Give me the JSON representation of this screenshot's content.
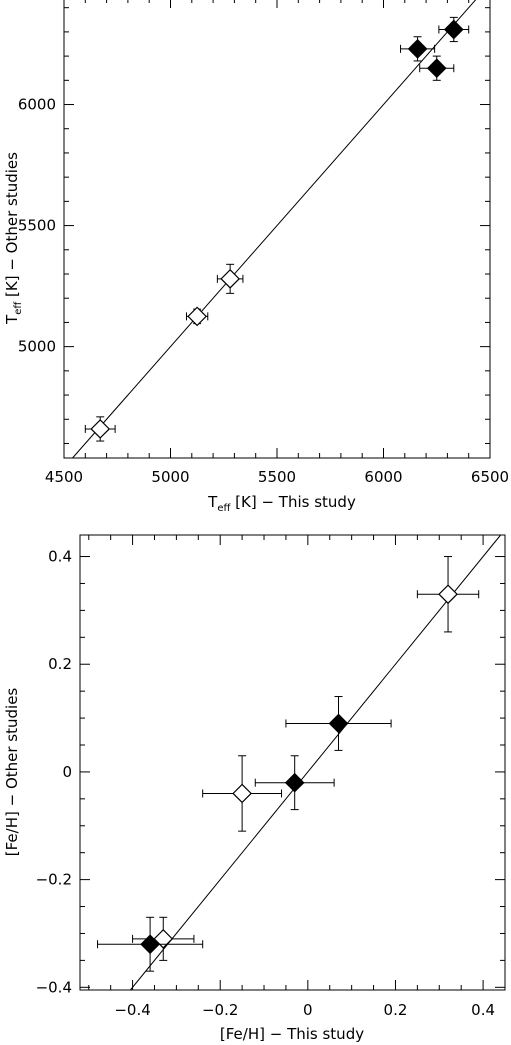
{
  "chart_data": [
    {
      "type": "scatter",
      "xlabel": "T_eff [K] - This study",
      "ylabel": "T_eff [K] - Other studies",
      "xlim": [
        4500,
        6500
      ],
      "ylim": [
        4540,
        6440
      ],
      "x_ticks": [
        "4500",
        "5000",
        "5500",
        "6000",
        "6500"
      ],
      "y_ticks": [
        "5000",
        "5500",
        "6000"
      ],
      "reference_line": "y = x",
      "series": [
        {
          "marker": "open-diamond",
          "points": [
            {
              "x": 4670,
              "y": 4660,
              "xerr": 70,
              "yerr": 50
            },
            {
              "x": 5125,
              "y": 5125,
              "xerr": 50,
              "yerr": 30
            },
            {
              "x": 5280,
              "y": 5280,
              "xerr": 60,
              "yerr": 60
            }
          ]
        },
        {
          "marker": "filled-diamond",
          "points": [
            {
              "x": 6160,
              "y": 6230,
              "xerr": 80,
              "yerr": 50
            },
            {
              "x": 6250,
              "y": 6150,
              "xerr": 80,
              "yerr": 50
            },
            {
              "x": 6330,
              "y": 6310,
              "xerr": 70,
              "yerr": 50
            }
          ]
        }
      ]
    },
    {
      "type": "scatter",
      "xlabel": "[Fe/H] - This study",
      "ylabel": "[Fe/H] - Other studies",
      "xlim": [
        -0.52,
        0.45
      ],
      "ylim": [
        -0.405,
        0.44
      ],
      "x_ticks": [
        "-0.4",
        "-0.2",
        "0",
        "0.2",
        "0.4"
      ],
      "y_ticks": [
        "-0.4",
        "-0.2",
        "0",
        "0.2",
        "0.4"
      ],
      "reference_line": "y = x",
      "series": [
        {
          "marker": "open-diamond",
          "points": [
            {
              "x": -0.15,
              "y": -0.04,
              "xerr": 0.09,
              "yerr": 0.07
            },
            {
              "x": -0.33,
              "y": -0.31,
              "xerr": 0.07,
              "yerr": 0.04
            },
            {
              "x": 0.32,
              "y": 0.33,
              "xerr": 0.07,
              "yerr": 0.07
            }
          ]
        },
        {
          "marker": "filled-diamond",
          "points": [
            {
              "x": -0.36,
              "y": -0.32,
              "xerr": 0.12,
              "yerr": 0.05
            },
            {
              "x": -0.03,
              "y": -0.02,
              "xerr": 0.09,
              "yerr": 0.05
            },
            {
              "x": 0.07,
              "y": 0.09,
              "xerr": 0.12,
              "yerr": 0.05
            }
          ]
        }
      ]
    }
  ],
  "labels": {
    "top": {
      "x_sym": "T",
      "x_sub": "eff",
      "x_rest": " [K]  −  This study",
      "y_sym": "T",
      "y_sub": "eff",
      "y_rest": " [K]  −  Other studies"
    },
    "bottom": {
      "x_text": "[Fe/H]  −  This study",
      "y_text": "[Fe/H]  −  Other studies"
    }
  }
}
